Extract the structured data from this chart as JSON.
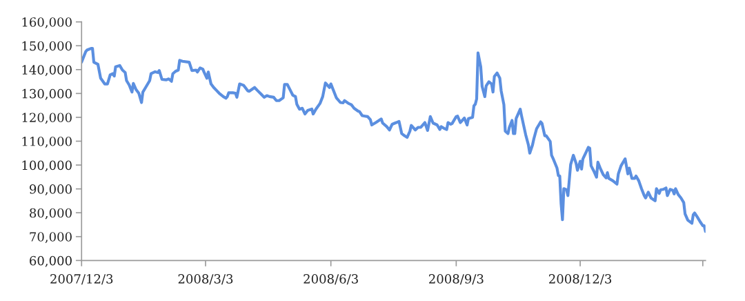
{
  "chart_data": {
    "type": "line",
    "x": [
      "2007-12-03",
      "2007-12-06",
      "2007-12-07",
      "2007-12-10",
      "2007-12-11",
      "2007-12-12",
      "2007-12-15",
      "2007-12-17",
      "2007-12-20",
      "2007-12-22",
      "2007-12-24",
      "2007-12-26",
      "2007-12-27",
      "2007-12-28",
      "2007-12-31",
      "2008-01-02",
      "2008-01-04",
      "2008-01-05",
      "2008-01-07",
      "2008-01-09",
      "2008-01-10",
      "2008-01-12",
      "2008-01-14",
      "2008-01-16",
      "2008-01-17",
      "2008-01-19",
      "2008-01-22",
      "2008-01-23",
      "2008-01-26",
      "2008-01-28",
      "2008-01-29",
      "2008-01-31",
      "2008-02-03",
      "2008-02-05",
      "2008-02-07",
      "2008-02-08",
      "2008-02-10",
      "2008-02-12",
      "2008-02-13",
      "2008-02-15",
      "2008-02-20",
      "2008-02-22",
      "2008-02-25",
      "2008-02-26",
      "2008-02-28",
      "2008-03-01",
      "2008-03-02",
      "2008-03-04",
      "2008-03-05",
      "2008-03-07",
      "2008-03-09",
      "2008-03-11",
      "2008-03-13",
      "2008-03-16",
      "2008-03-18",
      "2008-03-19",
      "2008-03-20",
      "2008-03-23",
      "2008-03-25",
      "2008-03-26",
      "2008-03-28",
      "2008-03-31",
      "2008-04-03",
      "2008-04-04",
      "2008-04-08",
      "2008-04-10",
      "2008-04-13",
      "2008-04-15",
      "2008-04-17",
      "2008-04-19",
      "2008-04-22",
      "2008-04-24",
      "2008-04-26",
      "2008-04-29",
      "2008-04-30",
      "2008-05-02",
      "2008-05-04",
      "2008-05-06",
      "2008-05-08",
      "2008-05-09",
      "2008-05-11",
      "2008-05-13",
      "2008-05-15",
      "2008-05-17",
      "2008-05-20",
      "2008-05-21",
      "2008-05-23",
      "2008-05-26",
      "2008-05-28",
      "2008-05-30",
      "2008-06-02",
      "2008-06-03",
      "2008-06-05",
      "2008-06-07",
      "2008-06-10",
      "2008-06-12",
      "2008-06-13",
      "2008-06-16",
      "2008-06-18",
      "2008-06-20",
      "2008-06-23",
      "2008-06-24",
      "2008-06-26",
      "2008-06-28",
      "2008-06-30",
      "2008-07-02",
      "2008-07-03",
      "2008-07-06",
      "2008-07-10",
      "2008-07-11",
      "2008-07-14",
      "2008-07-16",
      "2008-07-18",
      "2008-07-21",
      "2008-07-23",
      "2008-07-25",
      "2008-07-27",
      "2008-07-29",
      "2008-07-31",
      "2008-08-01",
      "2008-08-04",
      "2008-08-06",
      "2008-08-08",
      "2008-08-11",
      "2008-08-13",
      "2008-08-15",
      "2008-08-17",
      "2008-08-20",
      "2008-08-22",
      "2008-08-23",
      "2008-08-25",
      "2008-08-27",
      "2008-08-28",
      "2008-08-30",
      "2008-08-31",
      "2008-09-03",
      "2008-09-04",
      "2008-09-06",
      "2008-09-09",
      "2008-09-11",
      "2008-09-12",
      "2008-09-15",
      "2008-09-16",
      "2008-09-17",
      "2008-09-18",
      "2008-09-19",
      "2008-09-21",
      "2008-09-22",
      "2008-09-24",
      "2008-09-25",
      "2008-09-27",
      "2008-09-29",
      "2008-09-30",
      "2008-10-01",
      "2008-10-03",
      "2008-10-05",
      "2008-10-06",
      "2008-10-08",
      "2008-10-09",
      "2008-10-11",
      "2008-10-12",
      "2008-10-14",
      "2008-10-15",
      "2008-10-16",
      "2008-10-17",
      "2008-10-20",
      "2008-10-21",
      "2008-10-24",
      "2008-10-26",
      "2008-10-27",
      "2008-10-29",
      "2008-10-30",
      "2008-11-01",
      "2008-11-04",
      "2008-11-05",
      "2008-11-07",
      "2008-11-08",
      "2008-11-11",
      "2008-11-12",
      "2008-11-13",
      "2008-11-16",
      "2008-11-17",
      "2008-11-18",
      "2008-11-19",
      "2008-11-20",
      "2008-11-21",
      "2008-11-23",
      "2008-11-24",
      "2008-11-26",
      "2008-11-28",
      "2008-11-30",
      "2008-12-01",
      "2008-12-03",
      "2008-12-04",
      "2008-12-05",
      "2008-12-07",
      "2008-12-09",
      "2008-12-10",
      "2008-12-11",
      "2008-12-13",
      "2008-12-15",
      "2008-12-16",
      "2008-12-18",
      "2008-12-20",
      "2008-12-22",
      "2008-12-23",
      "2008-12-24",
      "2008-12-27",
      "2008-12-30",
      "2008-12-31",
      "2009-01-02",
      "2009-01-05",
      "2009-01-07",
      "2009-01-08",
      "2009-01-10",
      "2009-01-12",
      "2009-01-13",
      "2009-01-15",
      "2009-01-17",
      "2009-01-19",
      "2009-01-20",
      "2009-01-22",
      "2009-01-24",
      "2009-01-27",
      "2009-01-28",
      "2009-01-30",
      "2009-01-31",
      "2009-02-02",
      "2009-02-04",
      "2009-02-05",
      "2009-02-07",
      "2009-02-09",
      "2009-02-10",
      "2009-02-11",
      "2009-02-13",
      "2009-02-15",
      "2009-02-17",
      "2009-02-18",
      "2009-02-20",
      "2009-02-23",
      "2009-02-24",
      "2009-02-25",
      "2009-02-27",
      "2009-03-01",
      "2009-03-03",
      "2009-03-04",
      "2009-03-05"
    ],
    "series": [
      {
        "color": "#5b8fe0",
        "values": [
          143100,
          147500,
          148200,
          148900,
          148900,
          143100,
          142200,
          136400,
          134000,
          134000,
          137800,
          138300,
          137300,
          141200,
          141700,
          139800,
          138800,
          135400,
          133500,
          130600,
          134200,
          131600,
          130100,
          126200,
          130600,
          132500,
          135400,
          138300,
          139100,
          138800,
          139600,
          135900,
          135700,
          136100,
          135100,
          138300,
          139300,
          139800,
          143900,
          143500,
          143100,
          139600,
          139800,
          139000,
          140700,
          140200,
          138800,
          136400,
          139000,
          134000,
          132500,
          131300,
          130100,
          128700,
          128000,
          128700,
          130300,
          130300,
          130100,
          128400,
          134000,
          133400,
          131100,
          130900,
          132500,
          131300,
          129600,
          128400,
          129100,
          128700,
          128400,
          127000,
          127000,
          128200,
          133800,
          133800,
          131600,
          129300,
          128700,
          125500,
          123400,
          123800,
          121400,
          122900,
          123500,
          121400,
          123400,
          125800,
          128700,
          134400,
          132500,
          134000,
          131100,
          128200,
          126200,
          126100,
          127000,
          125800,
          125300,
          123800,
          122600,
          122400,
          120700,
          120500,
          120300,
          119000,
          116800,
          117800,
          119300,
          117600,
          116100,
          114700,
          117100,
          117800,
          118300,
          113200,
          112300,
          111600,
          114200,
          116600,
          114700,
          115800,
          115800,
          117800,
          114500,
          120300,
          117600,
          116800,
          114900,
          116100,
          115400,
          114900,
          117800,
          117100,
          117400,
          120300,
          120500,
          117800,
          119700,
          116800,
          119500,
          120000,
          124800,
          125500,
          127700,
          147000,
          141200,
          133000,
          128700,
          133200,
          134900,
          134000,
          130600,
          137100,
          138600,
          136400,
          131100,
          125300,
          114200,
          113200,
          115800,
          118700,
          113200,
          113200,
          119500,
          123400,
          120500,
          112700,
          108400,
          105000,
          108400,
          111000,
          115200,
          118100,
          117400,
          112300,
          112300,
          109900,
          104100,
          102900,
          98700,
          95600,
          95400,
          83800,
          77100,
          90100,
          89600,
          87200,
          100200,
          104100,
          100700,
          97800,
          101600,
          98300,
          102600,
          105000,
          107400,
          107100,
          99700,
          97500,
          94900,
          101200,
          98300,
          95900,
          94600,
          96800,
          94400,
          93400,
          92000,
          96300,
          99700,
          102600,
          96300,
          98700,
          94400,
          94400,
          95400,
          93400,
          90100,
          87200,
          86200,
          88600,
          86200,
          85000,
          90100,
          88100,
          89600,
          89800,
          90400,
          87200,
          89800,
          89400,
          87900,
          90100,
          87600,
          86200,
          84300,
          79500,
          76900,
          75600,
          79200,
          79900,
          78200,
          76300,
          74600,
          74600,
          72200
        ]
      }
    ],
    "xlim": [
      "2007-12-03",
      "2009-03-05"
    ],
    "xticks": [
      {
        "value": "2007-12-03",
        "label": "2007/12/3"
      },
      {
        "value": "2008-03-03",
        "label": "2008/3/3"
      },
      {
        "value": "2008-06-03",
        "label": "2008/6/3"
      },
      {
        "value": "2008-09-03",
        "label": "2008/9/3"
      },
      {
        "value": "2008-12-03",
        "label": "2008/12/3"
      },
      {
        "value": "2009-03-03",
        "label": null
      }
    ],
    "ylim": [
      60000,
      160000
    ],
    "yticks": [
      {
        "value": 60000,
        "label": "60,000"
      },
      {
        "value": 70000,
        "label": "70,000"
      },
      {
        "value": 80000,
        "label": "80,000"
      },
      {
        "value": 90000,
        "label": "90,000"
      },
      {
        "value": 100000,
        "label": "100,000"
      },
      {
        "value": 110000,
        "label": "110,000"
      },
      {
        "value": 120000,
        "label": "120,000"
      },
      {
        "value": 130000,
        "label": "130,000"
      },
      {
        "value": 140000,
        "label": "140,000"
      },
      {
        "value": 150000,
        "label": "150,000"
      },
      {
        "value": 160000,
        "label": "160,000"
      }
    ],
    "line_style": "solid"
  }
}
